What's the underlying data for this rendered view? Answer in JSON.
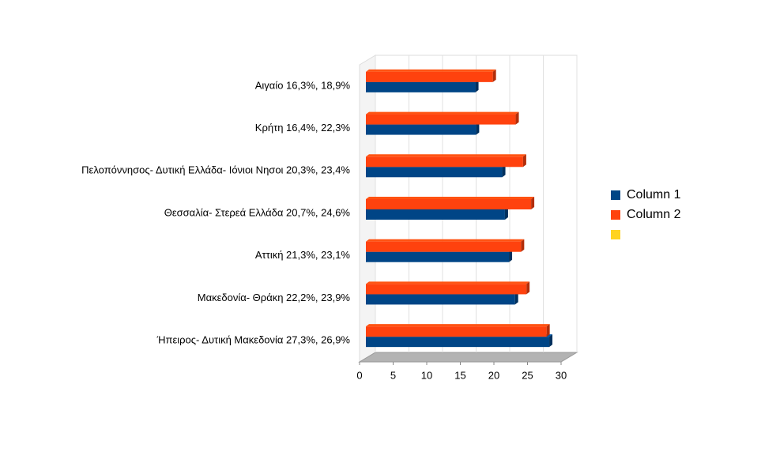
{
  "chart_data": {
    "type": "bar",
    "orientation": "horizontal",
    "categories": [
      "Αιγαίο 16,3%, 18,9%",
      "Κρήτη 16,4%, 22,3%",
      "Πελοπόννησος- Δυτική Ελλάδα- Ιόνιοι Νησοι 20,3%, 23,4%",
      "Θεσσαλία- Στερεά Ελλάδα 20,7%, 24,6%",
      "Αττική 21,3%, 23,1%",
      "Μακεδονία- Θράκη 22,2%, 23,9%",
      "Ήπειρος- Δυτική Μακεδονία 27,3%, 26,9%"
    ],
    "series": [
      {
        "name": "Column 1",
        "color": "#004586",
        "values": [
          16.3,
          16.4,
          20.3,
          20.7,
          21.3,
          22.2,
          27.3
        ]
      },
      {
        "name": "Column 2",
        "color": "#ff420e",
        "values": [
          18.9,
          22.3,
          23.4,
          24.6,
          23.1,
          23.9,
          26.9
        ]
      },
      {
        "color": "#ffd320",
        "values": [
          null,
          null,
          null,
          null,
          null,
          null,
          null
        ]
      }
    ],
    "xlim": [
      0,
      30
    ],
    "xticks": [
      0,
      5,
      10,
      15,
      20,
      25,
      30
    ],
    "grid": true
  }
}
